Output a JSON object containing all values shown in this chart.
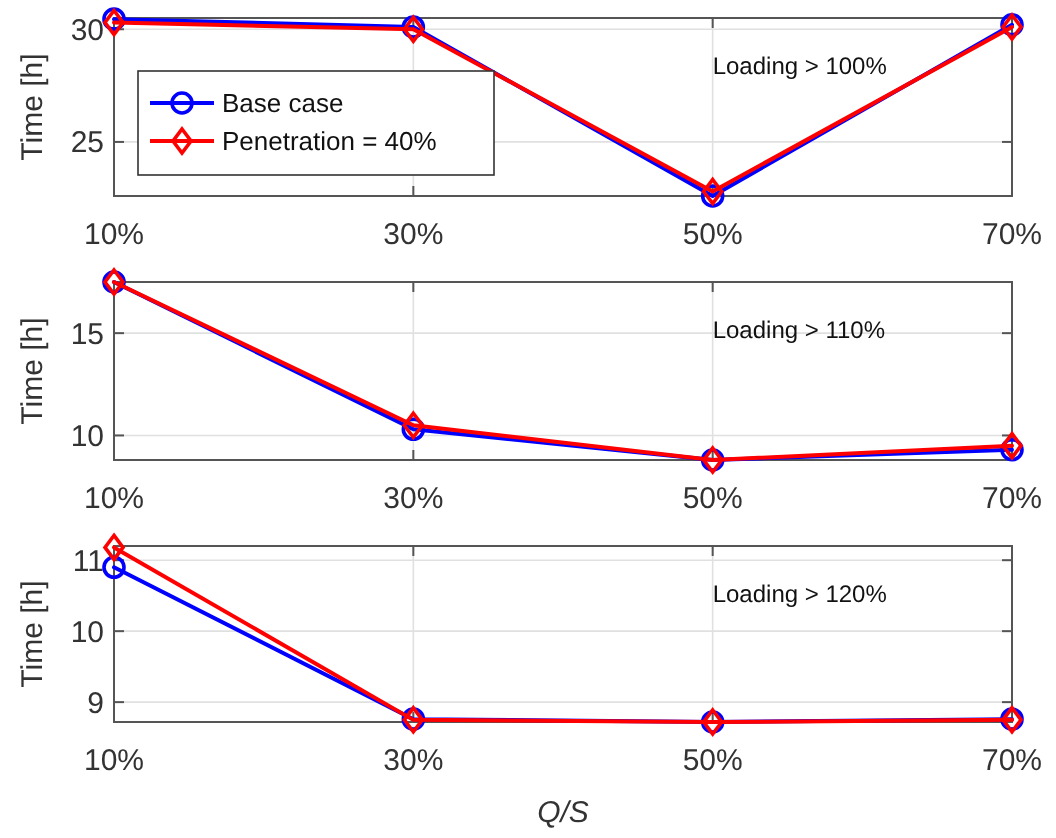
{
  "chart_data": [
    {
      "type": "line",
      "categories": [
        "10%",
        "30%",
        "50%",
        "70%"
      ],
      "ylabel": "Time [h]",
      "ylim": [
        22.6,
        30.5
      ],
      "yticks": [
        25,
        30
      ],
      "grid": true,
      "legend": "left",
      "line_style": "solid",
      "annotations": [
        "Loading > 100%"
      ],
      "series": [
        {
          "name": "Base case",
          "color": "#0000ff",
          "marker": "circle",
          "values": [
            30.45,
            30.1,
            22.6,
            30.2
          ]
        },
        {
          "name": "Penetration = 40%",
          "color": "#ff0000",
          "marker": "diamond",
          "values": [
            30.3,
            30.0,
            22.8,
            30.1
          ]
        }
      ]
    },
    {
      "type": "line",
      "categories": [
        "10%",
        "30%",
        "50%",
        "70%"
      ],
      "ylabel": "Time [h]",
      "ylim": [
        8.8,
        17.5
      ],
      "yticks": [
        10,
        15
      ],
      "grid": true,
      "line_style": "solid",
      "annotations": [
        "Loading > 110%"
      ],
      "series": [
        {
          "color": "#0000ff",
          "marker": "circle",
          "values": [
            17.5,
            10.3,
            8.8,
            9.3
          ]
        },
        {
          "color": "#ff0000",
          "marker": "diamond",
          "values": [
            17.5,
            10.5,
            8.8,
            9.5
          ]
        }
      ]
    },
    {
      "type": "line",
      "categories": [
        "10%",
        "30%",
        "50%",
        "70%"
      ],
      "ylabel": "Time [h]",
      "xlabel": "Q/S",
      "ylim": [
        8.72,
        11.2
      ],
      "yticks": [
        9,
        10,
        11
      ],
      "grid": true,
      "line_style": "solid",
      "annotations": [
        "Loading > 120%"
      ],
      "series": [
        {
          "color": "#0000ff",
          "marker": "circle",
          "values": [
            10.9,
            8.76,
            8.72,
            8.76
          ]
        },
        {
          "color": "#ff0000",
          "marker": "diamond",
          "values": [
            11.18,
            8.75,
            8.72,
            8.75
          ]
        }
      ]
    }
  ]
}
